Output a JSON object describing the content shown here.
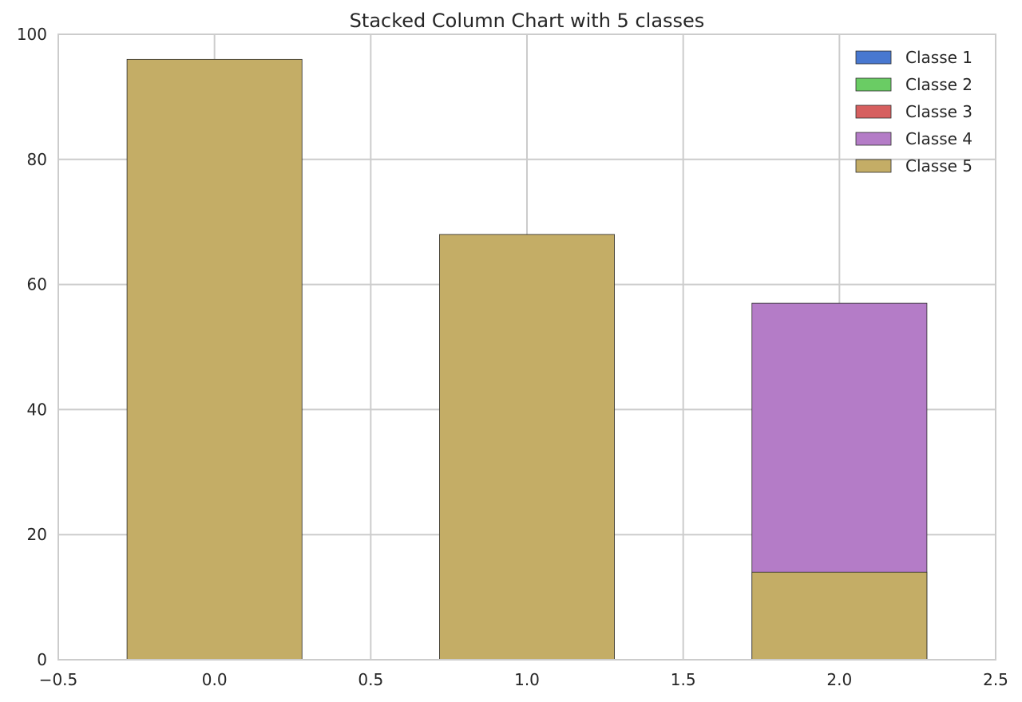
{
  "chart_data": {
    "type": "bar",
    "stacked": true,
    "title": "Stacked Column Chart with 5 classes",
    "xlabel": "",
    "ylabel": "",
    "x": [
      0,
      1,
      2
    ],
    "bar_width": 0.56,
    "xlim": [
      -0.5,
      2.5
    ],
    "ylim": [
      0,
      100
    ],
    "xticks": [
      -0.5,
      0.0,
      0.5,
      1.0,
      1.5,
      2.0,
      2.5
    ],
    "xtick_labels": [
      "−0.5",
      "0.0",
      "0.5",
      "1.0",
      "1.5",
      "2.0",
      "2.5"
    ],
    "yticks": [
      0,
      20,
      40,
      60,
      80,
      100
    ],
    "ytick_labels": [
      "0",
      "20",
      "40",
      "60",
      "80",
      "100"
    ],
    "grid": true,
    "legend_position": "top-right",
    "series": [
      {
        "name": "Classe 1",
        "color": "#4878d0",
        "values": [
          0,
          0,
          0
        ]
      },
      {
        "name": "Classe 2",
        "color": "#6acc64",
        "values": [
          0,
          0,
          0
        ]
      },
      {
        "name": "Classe 3",
        "color": "#d65f5f",
        "values": [
          0,
          0,
          0
        ]
      },
      {
        "name": "Classe 4",
        "color": "#b47cc7",
        "values": [
          0,
          0,
          57
        ]
      },
      {
        "name": "Classe 5",
        "color": "#c4ad66",
        "values": [
          96,
          68,
          14
        ]
      }
    ],
    "draw_order": [
      "Classe 4",
      "Classe 5"
    ]
  }
}
